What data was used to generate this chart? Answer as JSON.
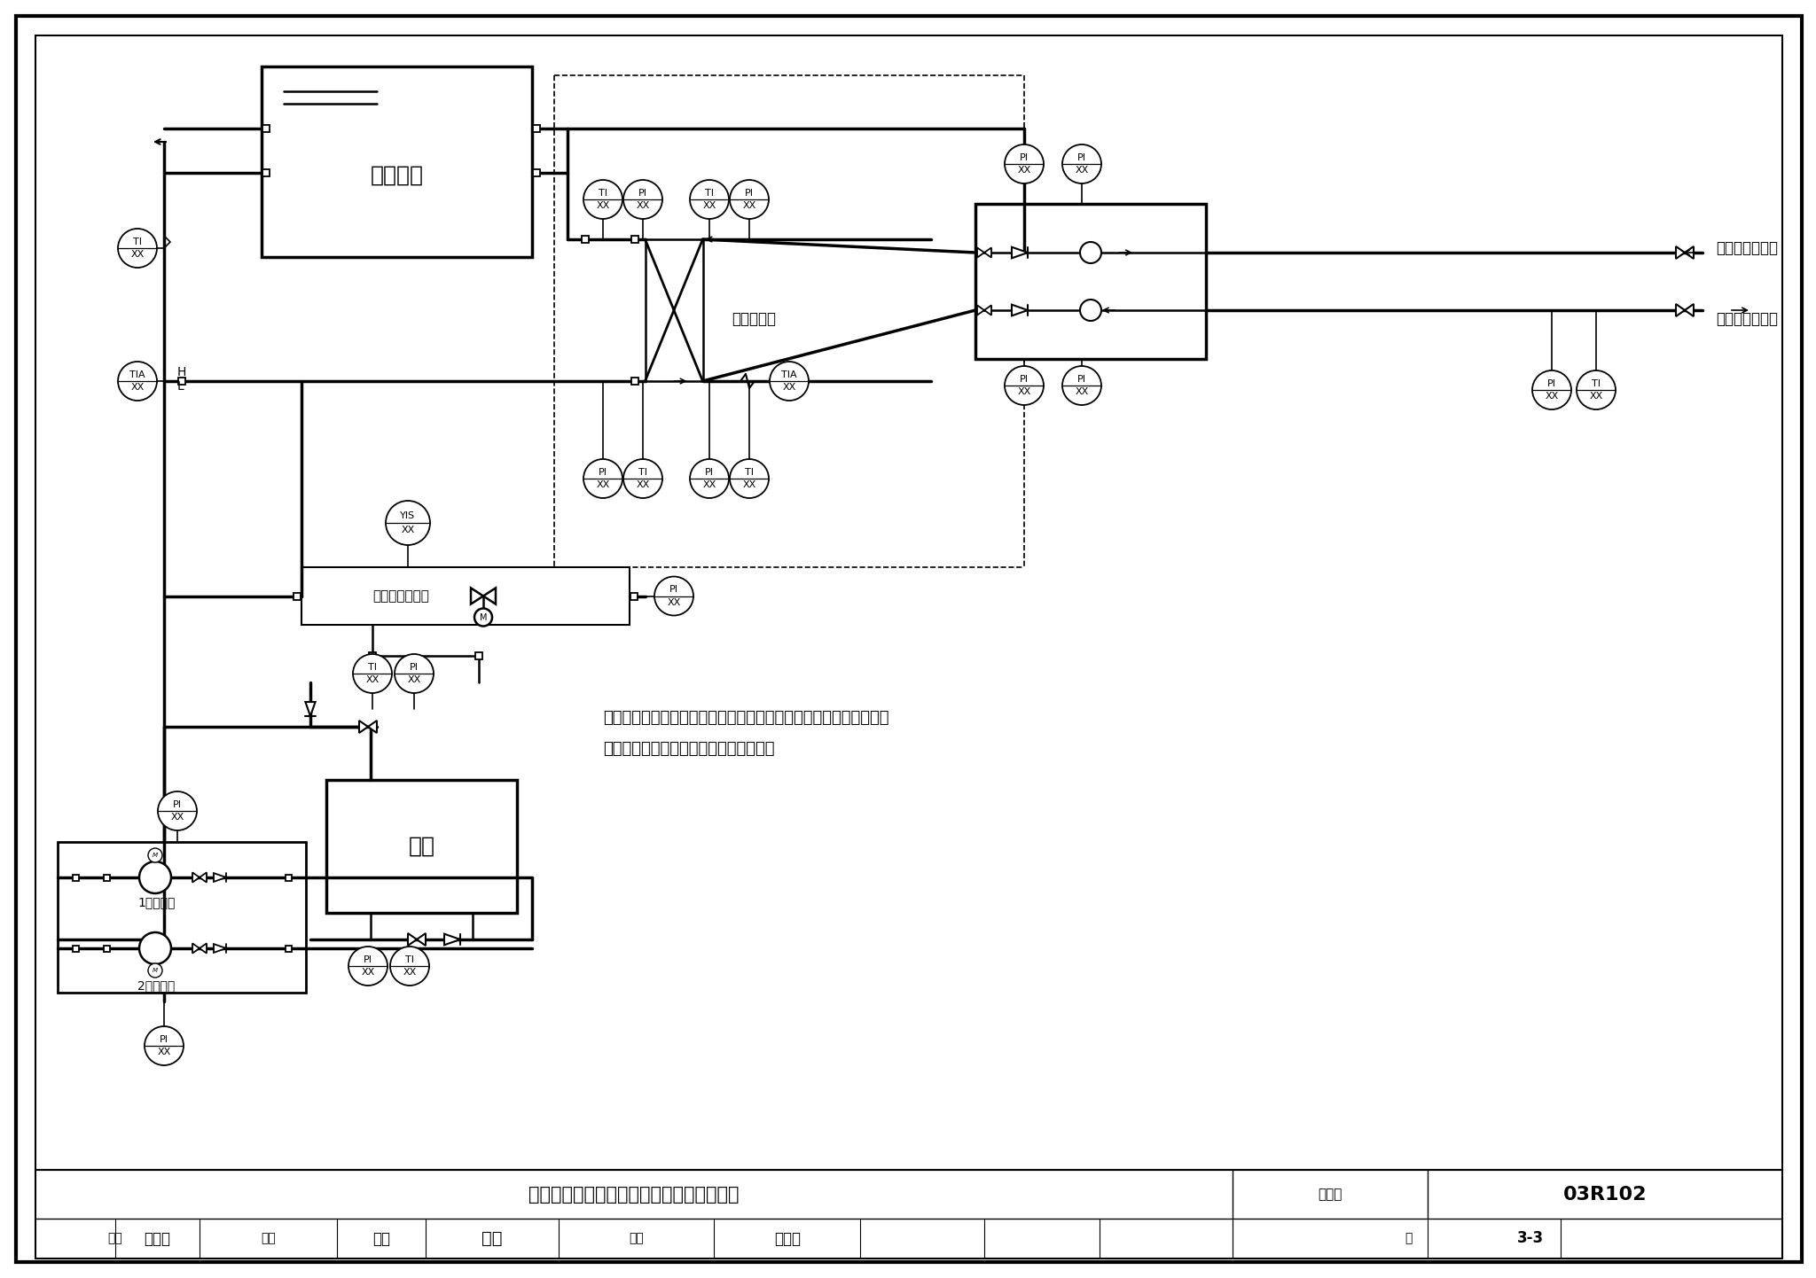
{
  "title": "蓄热式电锅炉房热工检测系统图（三通阀）",
  "fig_number": "03R102",
  "page": "3-3",
  "fig_label": "图集号",
  "background": "#ffffff",
  "note_text1": "说明：电动三通调节阀根据板式换热器出口温度调节开度，使板式换",
  "note_text2": "热器出口采暖水温度保持在设定范围内。",
  "tank_label": "蓄热水箱",
  "boiler_label": "锅炉",
  "valve_label": "电动三通调节阀",
  "heat_exchanger_label": "板式换热器",
  "pump1_label": "1号供热泵",
  "pump2_label": "2号供热泵",
  "supply_pipe_label": "接采暖供水管道",
  "return_pipe_label": "接采暖回水管道"
}
